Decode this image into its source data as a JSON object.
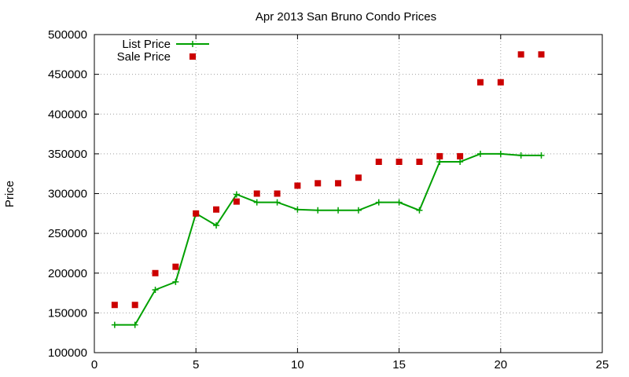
{
  "chart_data": {
    "type": "line",
    "title": "Apr 2013 San Bruno Condo Prices",
    "xlabel": "",
    "ylabel": "Price",
    "xlim": [
      0,
      25
    ],
    "ylim": [
      100000,
      500000
    ],
    "xticks": [
      "0",
      "5",
      "10",
      "15",
      "20",
      "25"
    ],
    "yticks": [
      "100000",
      "150000",
      "200000",
      "250000",
      "300000",
      "350000",
      "400000",
      "450000",
      "500000"
    ],
    "grid": true,
    "legend_position": "top-left",
    "series": [
      {
        "name": "List Price",
        "style": "line+cross",
        "color": "#00a000",
        "x": [
          1,
          2,
          3,
          4,
          5,
          6,
          7,
          8,
          9,
          10,
          11,
          12,
          13,
          14,
          15,
          16,
          17,
          18,
          19,
          20,
          21,
          22
        ],
        "y": [
          135000,
          135000,
          179000,
          189000,
          275000,
          260000,
          299000,
          289000,
          289000,
          280000,
          279000,
          279000,
          279000,
          289000,
          289000,
          279000,
          340000,
          340000,
          350000,
          350000,
          348000,
          348000
        ]
      },
      {
        "name": "Sale Price",
        "style": "square-points",
        "color": "#cc0000",
        "x": [
          1,
          2,
          3,
          4,
          5,
          6,
          7,
          8,
          9,
          10,
          11,
          12,
          13,
          14,
          15,
          16,
          17,
          18,
          19,
          20,
          21,
          22
        ],
        "y": [
          160000,
          160000,
          200000,
          208000,
          275000,
          280000,
          290000,
          300000,
          300000,
          310000,
          313000,
          313000,
          320000,
          340000,
          340000,
          340000,
          347000,
          347000,
          440000,
          440000,
          475000,
          475000
        ]
      }
    ]
  }
}
